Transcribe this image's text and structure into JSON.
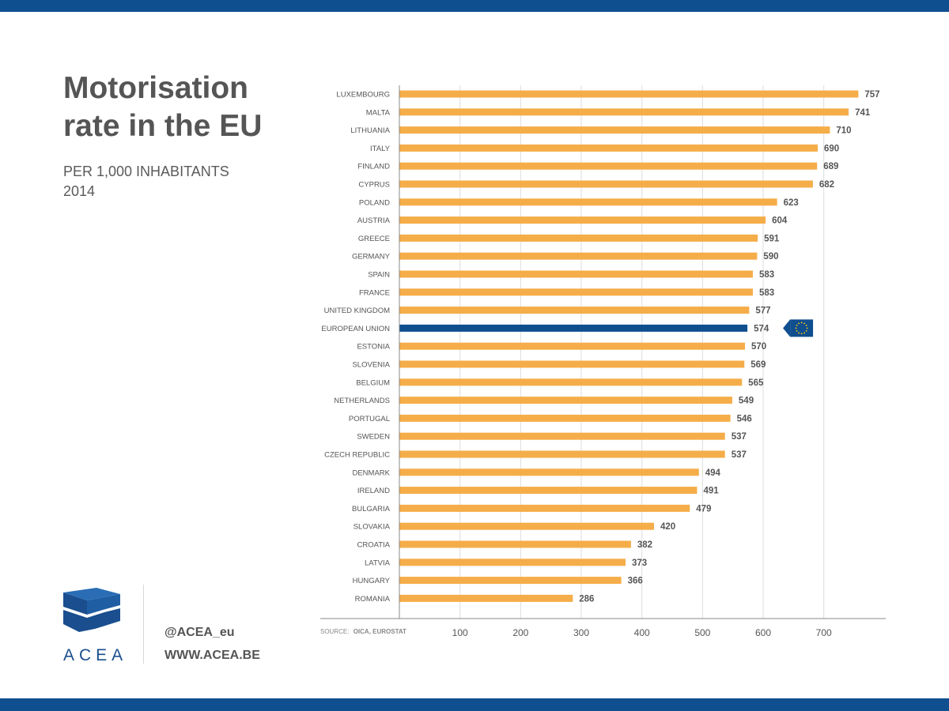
{
  "header": {
    "title_line1": "Motorisation",
    "title_line2": "rate in the EU",
    "subtitle_line1": "PER 1,000 INHABITANTS",
    "subtitle_line2": "2014"
  },
  "footer": {
    "logo_text": "ACEA",
    "handle": "@ACEA_eu",
    "website": "WWW.ACEA.BE"
  },
  "source_label": "SOURCE:",
  "source_value": "OICA, EUROSTAT",
  "colors": {
    "bar": "#f5ad49",
    "highlight": "#0f4e8f",
    "band": "#0f4e8f",
    "flag_star": "#ffcc00"
  },
  "flag_icon": "eu-flag-icon",
  "chart_data": {
    "type": "bar",
    "orientation": "horizontal",
    "title": "Motorisation rate in the EU",
    "subtitle": "PER 1,000 INHABITANTS 2014",
    "categories": [
      "LUXEMBOURG",
      "MALTA",
      "LITHUANIA",
      "ITALY",
      "FINLAND",
      "CYPRUS",
      "POLAND",
      "AUSTRIA",
      "GREECE",
      "GERMANY",
      "SPAIN",
      "FRANCE",
      "UNITED KINGDOM",
      "EUROPEAN UNION",
      "ESTONIA",
      "SLOVENIA",
      "BELGIUM",
      "NETHERLANDS",
      "PORTUGAL",
      "SWEDEN",
      "CZECH REPUBLIC",
      "DENMARK",
      "IRELAND",
      "BULGARIA",
      "SLOVAKIA",
      "CROATIA",
      "LATVIA",
      "HUNGARY",
      "ROMANIA"
    ],
    "values": [
      757,
      741,
      710,
      690,
      689,
      682,
      623,
      604,
      591,
      590,
      583,
      583,
      577,
      574,
      570,
      569,
      565,
      549,
      546,
      537,
      537,
      494,
      491,
      479,
      420,
      382,
      373,
      366,
      286
    ],
    "highlight": "EUROPEAN UNION",
    "xticks": [
      100,
      200,
      300,
      400,
      500,
      600,
      700
    ],
    "xlim": [
      0,
      800
    ],
    "grid": true,
    "xlabel": "",
    "ylabel": ""
  }
}
